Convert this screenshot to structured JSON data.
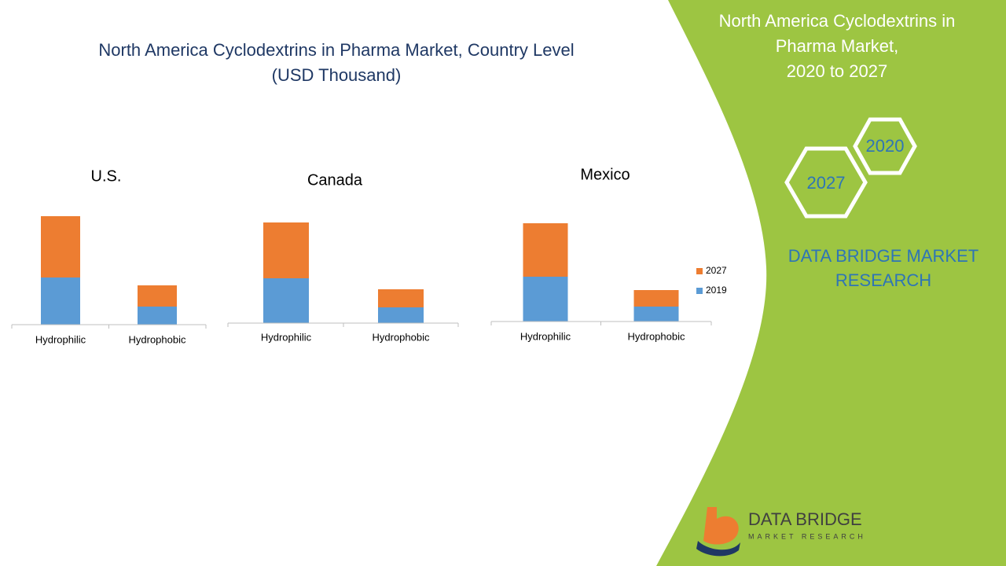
{
  "title_lines": [
    "North America Cyclodextrins in Pharma Market, Country Level",
    "(USD Thousand)"
  ],
  "chart_data": [
    {
      "type": "bar",
      "stacked": true,
      "title": "U.S.",
      "categories": [
        "Hydrophilic",
        "Hydrophobic"
      ],
      "series": [
        {
          "color": "#5b9bd5",
          "values": [
            60,
            23
          ]
        },
        {
          "color": "#ed7d31",
          "values": [
            78,
            27
          ]
        }
      ]
    },
    {
      "type": "bar",
      "stacked": true,
      "title": "Canada",
      "categories": [
        "Hydrophilic",
        "Hydrophobic"
      ],
      "series": [
        {
          "color": "#5b9bd5",
          "values": [
            57,
            20
          ]
        },
        {
          "color": "#ed7d31",
          "values": [
            71,
            23
          ]
        }
      ]
    },
    {
      "type": "bar",
      "stacked": true,
      "title": "Mexico",
      "categories": [
        "Hydrophilic",
        "Hydrophobic"
      ],
      "series": [
        {
          "name": "2019",
          "color": "#5b9bd5",
          "values": [
            57,
            19
          ]
        },
        {
          "name": "2027",
          "color": "#ed7d31",
          "values": [
            68,
            21
          ]
        }
      ],
      "legend": "right"
    }
  ],
  "panel": {
    "title_lines": [
      "North America Cyclodextrins in",
      "Pharma Market,",
      "2020 to 2027"
    ],
    "hex_top": "2020",
    "hex_bottom": "2027",
    "brand_lines": [
      "DATA BRIDGE MARKET",
      "RESEARCH"
    ],
    "logo_title": "DATA BRIDGE",
    "logo_subtitle": "MARKET RESEARCH"
  }
}
